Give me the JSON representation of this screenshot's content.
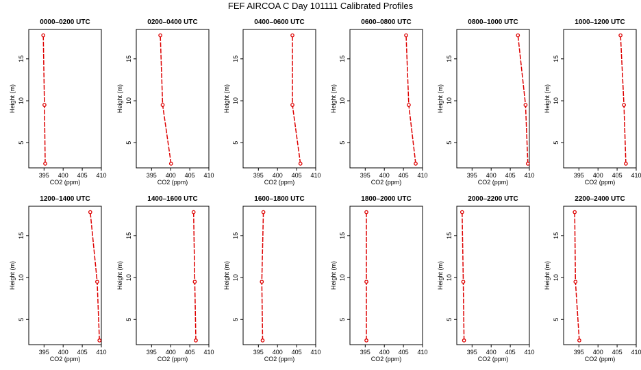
{
  "title": "FEF AIRCOA C  Day 101111  Calibrated Profiles",
  "chart_data": [
    {
      "type": "line",
      "title": "0000–0200 UTC",
      "xlabel": "CO2 (ppm)",
      "ylabel": "Height (m)",
      "xlim": [
        391,
        410
      ],
      "ylim": [
        2,
        18.5
      ],
      "xticks": [
        395,
        400,
        405,
        410
      ],
      "yticks": [
        5,
        10,
        15
      ],
      "x": [
        395.3,
        395.1,
        394.8
      ],
      "y": [
        2.5,
        9.5,
        17.8
      ],
      "color": "#dd0000",
      "grid": false
    },
    {
      "type": "line",
      "title": "0200–0400 UTC",
      "xlabel": "CO2 (ppm)",
      "ylabel": "Height (m)",
      "xlim": [
        391,
        410
      ],
      "ylim": [
        2,
        18.5
      ],
      "xticks": [
        395,
        400,
        405,
        410
      ],
      "yticks": [
        5,
        10,
        15
      ],
      "x": [
        400.1,
        397.9,
        397.3
      ],
      "y": [
        2.5,
        9.5,
        17.8
      ],
      "color": "#dd0000",
      "grid": false
    },
    {
      "type": "line",
      "title": "0400–0600 UTC",
      "xlabel": "CO2 (ppm)",
      "ylabel": "Height (m)",
      "xlim": [
        391,
        410
      ],
      "ylim": [
        2,
        18.5
      ],
      "xticks": [
        395,
        400,
        405,
        410
      ],
      "yticks": [
        5,
        10,
        15
      ],
      "x": [
        406.0,
        403.9,
        403.9
      ],
      "y": [
        2.5,
        9.5,
        17.8
      ],
      "color": "#dd0000",
      "grid": false
    },
    {
      "type": "line",
      "title": "0600–0800 UTC",
      "xlabel": "CO2 (ppm)",
      "ylabel": "Height (m)",
      "xlim": [
        391,
        410
      ],
      "ylim": [
        2,
        18.5
      ],
      "xticks": [
        395,
        400,
        405,
        410
      ],
      "yticks": [
        5,
        10,
        15
      ],
      "x": [
        408.2,
        406.4,
        405.7
      ],
      "y": [
        2.5,
        9.5,
        17.8
      ],
      "color": "#dd0000",
      "grid": false
    },
    {
      "type": "line",
      "title": "0800–1000 UTC",
      "xlabel": "CO2 (ppm)",
      "ylabel": "Height (m)",
      "xlim": [
        391,
        410
      ],
      "ylim": [
        2,
        18.5
      ],
      "xticks": [
        395,
        400,
        405,
        410
      ],
      "yticks": [
        5,
        10,
        15
      ],
      "x": [
        409.6,
        409.0,
        407.0
      ],
      "y": [
        2.5,
        9.5,
        17.8
      ],
      "color": "#dd0000",
      "grid": false
    },
    {
      "type": "line",
      "title": "1000–1200 UTC",
      "xlabel": "CO2 (ppm)",
      "ylabel": "Height (m)",
      "xlim": [
        391,
        410
      ],
      "ylim": [
        2,
        18.5
      ],
      "xticks": [
        395,
        400,
        405,
        410
      ],
      "yticks": [
        5,
        10,
        15
      ],
      "x": [
        407.3,
        406.8,
        405.9
      ],
      "y": [
        2.5,
        9.5,
        17.8
      ],
      "color": "#dd0000",
      "grid": false
    },
    {
      "type": "line",
      "title": "1200–1400 UTC",
      "xlabel": "CO2 (ppm)",
      "ylabel": "Height (m)",
      "xlim": [
        391,
        410
      ],
      "ylim": [
        2,
        18.5
      ],
      "xticks": [
        395,
        400,
        405,
        410
      ],
      "yticks": [
        5,
        10,
        15
      ],
      "x": [
        409.5,
        408.9,
        407.1
      ],
      "y": [
        2.5,
        9.5,
        17.8
      ],
      "color": "#dd0000",
      "grid": false
    },
    {
      "type": "line",
      "title": "1400–1600 UTC",
      "xlabel": "CO2 (ppm)",
      "ylabel": "Height (m)",
      "xlim": [
        391,
        410
      ],
      "ylim": [
        2,
        18.5
      ],
      "xticks": [
        395,
        400,
        405,
        410
      ],
      "yticks": [
        5,
        10,
        15
      ],
      "x": [
        406.6,
        406.3,
        406.0
      ],
      "y": [
        2.5,
        9.5,
        17.8
      ],
      "color": "#dd0000",
      "grid": false
    },
    {
      "type": "line",
      "title": "1600–1800 UTC",
      "xlabel": "CO2 (ppm)",
      "ylabel": "Height (m)",
      "xlim": [
        391,
        410
      ],
      "ylim": [
        2,
        18.5
      ],
      "xticks": [
        395,
        400,
        405,
        410
      ],
      "yticks": [
        5,
        10,
        15
      ],
      "x": [
        396.1,
        395.9,
        396.3
      ],
      "y": [
        2.5,
        9.5,
        17.8
      ],
      "color": "#dd0000",
      "grid": false
    },
    {
      "type": "line",
      "title": "1800–2000 UTC",
      "xlabel": "CO2 (ppm)",
      "ylabel": "Height (m)",
      "xlim": [
        391,
        410
      ],
      "ylim": [
        2,
        18.5
      ],
      "xticks": [
        395,
        400,
        405,
        410
      ],
      "yticks": [
        5,
        10,
        15
      ],
      "x": [
        395.3,
        395.3,
        395.3
      ],
      "y": [
        2.5,
        9.5,
        17.8
      ],
      "color": "#dd0000",
      "grid": false
    },
    {
      "type": "line",
      "title": "2000–2200 UTC",
      "xlabel": "CO2 (ppm)",
      "ylabel": "Height (m)",
      "xlim": [
        391,
        410
      ],
      "ylim": [
        2,
        18.5
      ],
      "xticks": [
        395,
        400,
        405,
        410
      ],
      "yticks": [
        5,
        10,
        15
      ],
      "x": [
        392.9,
        392.7,
        392.4
      ],
      "y": [
        2.5,
        9.5,
        17.8
      ],
      "color": "#dd0000",
      "grid": false
    },
    {
      "type": "line",
      "title": "2200–2400 UTC",
      "xlabel": "CO2 (ppm)",
      "ylabel": "Height (m)",
      "xlim": [
        391,
        410
      ],
      "ylim": [
        2,
        18.5
      ],
      "xticks": [
        395,
        400,
        405,
        410
      ],
      "yticks": [
        5,
        10,
        15
      ],
      "x": [
        395.1,
        394.1,
        393.9
      ],
      "y": [
        2.5,
        9.5,
        17.8
      ],
      "color": "#dd0000",
      "grid": false
    }
  ]
}
